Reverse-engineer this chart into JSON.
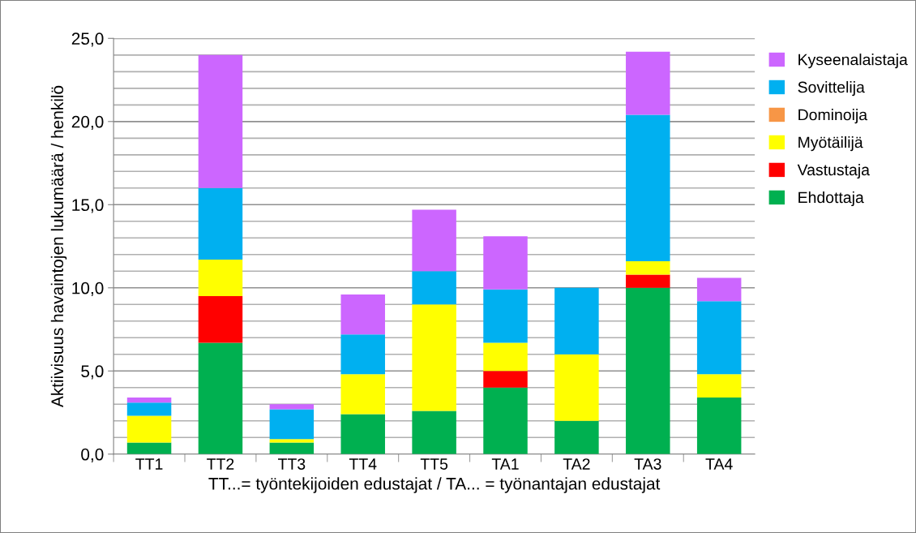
{
  "chart_data": {
    "type": "bar",
    "stacked": true,
    "categories": [
      "TT1",
      "TT2",
      "TT3",
      "TT4",
      "TT5",
      "TA1",
      "TA2",
      "TA3",
      "TA4"
    ],
    "series": [
      {
        "name": "Ehdottaja",
        "color": "#00b050",
        "values": [
          0.7,
          6.7,
          0.7,
          2.4,
          2.6,
          4.0,
          2.0,
          10.0,
          3.4
        ]
      },
      {
        "name": "Vastustaja",
        "color": "#ff0000",
        "values": [
          0,
          2.8,
          0,
          0,
          0,
          1.0,
          0,
          0.8,
          0
        ]
      },
      {
        "name": "Myötäilijä",
        "color": "#ffff00",
        "values": [
          1.6,
          2.2,
          0.2,
          2.4,
          6.4,
          1.7,
          4.0,
          0.8,
          1.4
        ]
      },
      {
        "name": "Dominoija",
        "color": "#f79646",
        "values": [
          0,
          0,
          0,
          0,
          0,
          0,
          0,
          0,
          0
        ]
      },
      {
        "name": "Sovittelija",
        "color": "#00b0f0",
        "values": [
          0.8,
          4.3,
          1.8,
          2.4,
          2.0,
          3.2,
          4.0,
          8.8,
          4.4
        ]
      },
      {
        "name": "Kyseenalaistaja",
        "color": "#cc66ff",
        "values": [
          0.3,
          8.0,
          0.3,
          2.4,
          3.7,
          3.2,
          0,
          3.8,
          1.4
        ]
      }
    ],
    "ylim": [
      0,
      25
    ],
    "yticks": [
      {
        "value": 0,
        "label": "0,0"
      },
      {
        "value": 1,
        "label": null
      },
      {
        "value": 2,
        "label": null
      },
      {
        "value": 3,
        "label": null
      },
      {
        "value": 4,
        "label": null
      },
      {
        "value": 5,
        "label": "5,0"
      },
      {
        "value": 6,
        "label": null
      },
      {
        "value": 7,
        "label": null
      },
      {
        "value": 8,
        "label": null
      },
      {
        "value": 9,
        "label": null
      },
      {
        "value": 10,
        "label": "10,0"
      },
      {
        "value": 11,
        "label": null
      },
      {
        "value": 12,
        "label": null
      },
      {
        "value": 13,
        "label": null
      },
      {
        "value": 14,
        "label": null
      },
      {
        "value": 15,
        "label": "15,0"
      },
      {
        "value": 16,
        "label": null
      },
      {
        "value": 17,
        "label": null
      },
      {
        "value": 18,
        "label": null
      },
      {
        "value": 19,
        "label": null
      },
      {
        "value": 20,
        "label": "20,0"
      },
      {
        "value": 21,
        "label": null
      },
      {
        "value": 22,
        "label": null
      },
      {
        "value": 23,
        "label": null
      },
      {
        "value": 24,
        "label": null
      },
      {
        "value": 25,
        "label": "25,0"
      }
    ],
    "ylabel": "Aktiivisuus havaintojen lukumäärä / henkilö",
    "xlabel": "TT...= työntekijoiden edustajat / TA... = työnantajan edustajat",
    "grid": "y",
    "legend": "right"
  }
}
